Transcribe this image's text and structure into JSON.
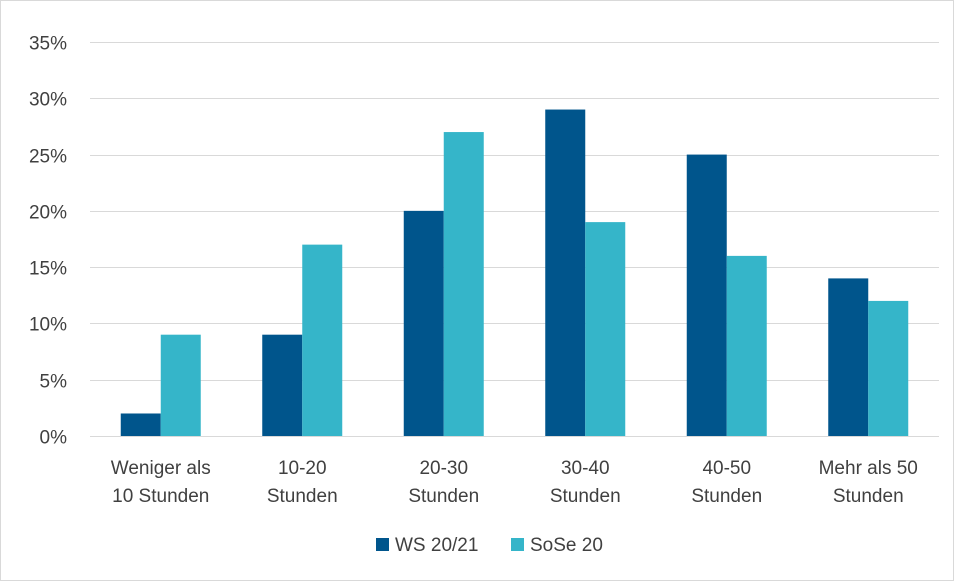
{
  "chart_data": {
    "type": "bar",
    "title": "",
    "xlabel": "",
    "ylabel": "",
    "categories": [
      [
        "Weniger als",
        "10 Stunden"
      ],
      [
        "10-20",
        "Stunden"
      ],
      [
        "20-30",
        "Stunden"
      ],
      [
        "30-40",
        "Stunden"
      ],
      [
        "40-50",
        "Stunden"
      ],
      [
        "Mehr als 50",
        "Stunden"
      ]
    ],
    "series": [
      {
        "name": "WS 20/21",
        "color": "#00558C",
        "values": [
          2,
          9,
          20,
          29,
          25,
          14
        ]
      },
      {
        "name": "SoSe 20",
        "color": "#35B5C9",
        "values": [
          9,
          17,
          27,
          19,
          16,
          12
        ]
      }
    ],
    "ylim": [
      0,
      35
    ],
    "yticks": [
      0,
      5,
      10,
      15,
      20,
      25,
      30,
      35
    ],
    "ytick_labels": [
      "0%",
      "5%",
      "10%",
      "15%",
      "20%",
      "25%",
      "30%",
      "35%"
    ],
    "grid": true,
    "legend": "bottom-center"
  }
}
